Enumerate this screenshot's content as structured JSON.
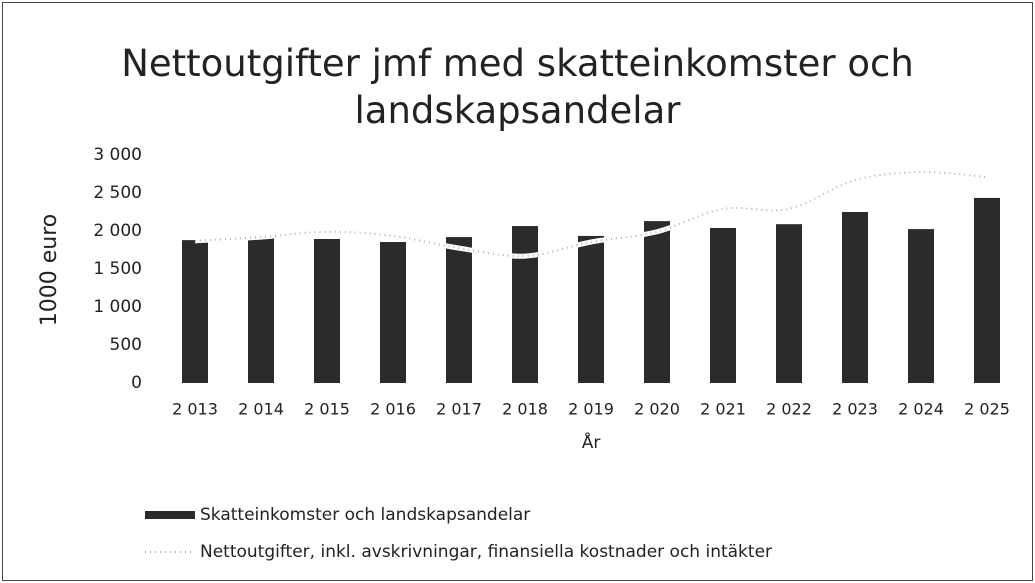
{
  "chart_data": {
    "type": "bar_line",
    "title": "Nettoutgifter jmf med skatteinkomster och landskapsandelar",
    "y_label": "1000 euro",
    "x_label": "År",
    "categories": [
      "2 013",
      "2 014",
      "2 015",
      "2 016",
      "2 017",
      "2 018",
      "2 019",
      "2 020",
      "2 021",
      "2 022",
      "2 023",
      "2 024",
      "2 025"
    ],
    "series": [
      {
        "name": "Skatteinkomster och landskapsandelar",
        "type": "bar",
        "color": "#2b2b2b",
        "values": [
          1880,
          1920,
          1895,
          1855,
          1920,
          2065,
          1935,
          2130,
          2040,
          2090,
          2250,
          2025,
          2435
        ]
      },
      {
        "name": "Nettoutgifter, inkl. avskrivningar, finansiella kostnader och intäkter",
        "type": "line",
        "color": "#b0b0b0",
        "values": [
          1870,
          1920,
          1990,
          1935,
          1775,
          1670,
          1855,
          1990,
          2290,
          2290,
          2670,
          2775,
          2710
        ]
      }
    ],
    "ylim": [
      0,
      3000
    ],
    "yticks": [
      0,
      500,
      {
        "value": 1000,
        "label": "1 000"
      },
      {
        "value": 1500,
        "label": "1 500"
      },
      {
        "value": 2000,
        "label": "2 000"
      },
      {
        "value": 2500,
        "label": "2 500"
      },
      {
        "value": 3000,
        "label": "3 000"
      }
    ],
    "legend": "bottom-left"
  }
}
